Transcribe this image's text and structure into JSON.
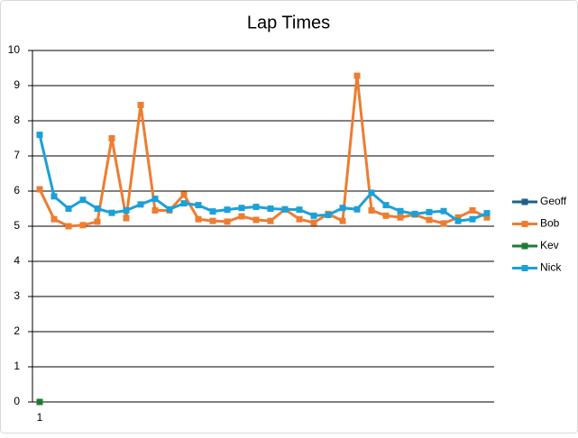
{
  "chart_data": {
    "type": "line",
    "title": "Lap Times",
    "categories": [
      "1",
      null,
      null,
      null,
      null,
      null,
      null,
      null,
      null,
      null,
      null,
      null,
      null,
      null,
      null,
      null,
      null,
      null,
      null,
      null,
      null,
      null,
      null,
      null,
      null,
      null,
      null,
      null,
      null,
      null,
      null,
      null
    ],
    "series": [
      {
        "name": "Geoff",
        "color": "#1f5f8b",
        "values": [
          null,
          null,
          null,
          null,
          null,
          null,
          null,
          null,
          null,
          null,
          null,
          null,
          null,
          null,
          null,
          null,
          null,
          null,
          null,
          null,
          null,
          null,
          null,
          null,
          null,
          null,
          null,
          null,
          null,
          null,
          null,
          null
        ]
      },
      {
        "name": "Bob",
        "color": "#ed7d31",
        "values": [
          6.05,
          5.2,
          5.0,
          5.03,
          5.13,
          7.5,
          5.23,
          8.45,
          5.45,
          5.45,
          5.9,
          5.2,
          5.15,
          5.13,
          5.28,
          5.18,
          5.15,
          5.48,
          5.2,
          5.1,
          5.35,
          5.15,
          9.28,
          5.45,
          5.3,
          5.25,
          5.33,
          5.18,
          5.08,
          5.25,
          5.45,
          5.25
        ]
      },
      {
        "name": "Kev",
        "color": "#1e7b34",
        "values": [
          0,
          null,
          null,
          null,
          null,
          null,
          null,
          null,
          null,
          null,
          null,
          null,
          null,
          null,
          null,
          null,
          null,
          null,
          null,
          null,
          null,
          null,
          null,
          null,
          null,
          null,
          null,
          null,
          null,
          null,
          null,
          null
        ]
      },
      {
        "name": "Nick",
        "color": "#1ca0d8",
        "values": [
          7.6,
          5.85,
          5.5,
          5.75,
          5.5,
          5.38,
          5.45,
          5.62,
          5.78,
          5.48,
          5.65,
          5.6,
          5.42,
          5.47,
          5.52,
          5.55,
          5.5,
          5.48,
          5.47,
          5.3,
          5.32,
          5.52,
          5.48,
          5.95,
          5.6,
          5.43,
          5.35,
          5.4,
          5.43,
          5.15,
          5.2,
          5.37
        ]
      }
    ],
    "ylim": [
      0,
      10
    ],
    "yticks": [
      0,
      1,
      2,
      3,
      4,
      5,
      6,
      7,
      8,
      9,
      10
    ],
    "grid": true,
    "legend": "right"
  }
}
